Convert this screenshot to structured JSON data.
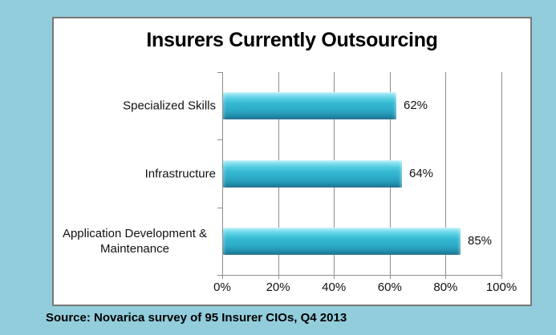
{
  "page": {
    "background_color": "#92CDDC",
    "panel_background": "#FFFFFF",
    "panel_border_color": "#777777"
  },
  "chart_data": {
    "type": "bar",
    "orientation": "horizontal",
    "title": "Insurers Currently Outsourcing",
    "categories": [
      "Specialized Skills",
      "Infrastructure",
      "Application Development & Maintenance"
    ],
    "values": [
      62,
      64,
      85
    ],
    "value_labels": [
      "62%",
      "64%",
      "85%"
    ],
    "x_tick_labels": [
      "0%",
      "20%",
      "40%",
      "60%",
      "80%",
      "100%"
    ],
    "x_tick_values": [
      0,
      20,
      40,
      60,
      80,
      100
    ],
    "xlim": [
      0,
      100
    ],
    "xlabel": "",
    "ylabel": "",
    "grid": true,
    "legend": false,
    "colors": {
      "bar_main": "#2FB0CC",
      "bar_highlight": "#CAF2FA",
      "bar_shadow": "#1B7390",
      "gridline": "#8E8E8E",
      "text": "#111111"
    }
  },
  "source": {
    "text": "Source: Novarica survey of 95 Insurer CIOs, Q4 2013"
  }
}
